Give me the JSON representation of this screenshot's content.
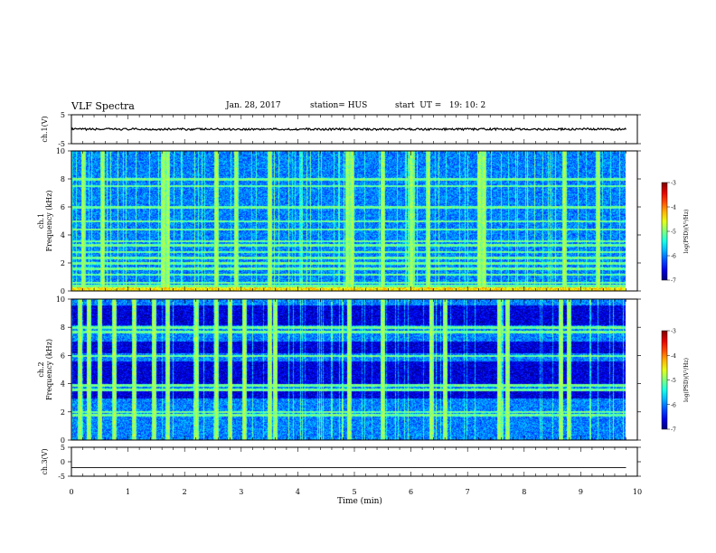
{
  "header": {
    "title": "VLF Spectra",
    "date": "Jan. 28, 2017",
    "station": "station= HUS",
    "start_ut": "start  UT =   19: 10: 2"
  },
  "chart_data": [
    {
      "type": "line",
      "panel": "ch1-waveform",
      "ylabel": "ch.1(V)",
      "ylim": [
        -5,
        5
      ],
      "yticks": [
        5,
        -5
      ],
      "xlim": [
        0,
        10
      ],
      "series": [
        {
          "level": 0,
          "noise_amplitude": 0.35
        }
      ]
    },
    {
      "type": "heatmap",
      "panel": "ch1-spectrogram",
      "ylabel": "ch.1\nFrequency (kHz)",
      "ylim": [
        0,
        10
      ],
      "yticks": [
        0,
        2,
        4,
        6,
        8,
        10
      ],
      "xlim": [
        0,
        10
      ],
      "time_end_min": 9.8,
      "colorbar": {
        "label": "log(PSD)(V²/Hz)",
        "range": [
          -7,
          -3
        ],
        "ticks": [
          -3,
          -4,
          -5,
          -6,
          -7
        ]
      },
      "horizontal_lines_khz": [
        0.4,
        0.6,
        1.2,
        1.6,
        2.0,
        2.4,
        2.8,
        3.3,
        3.6,
        4.4,
        5.0,
        6.0,
        7.5,
        8.0
      ],
      "vertical_bursts_min": [
        0.2,
        0.55,
        1.62,
        1.7,
        2.55,
        2.9,
        3.5,
        4.87,
        4.95,
        5.5,
        6.0,
        6.3,
        7.2,
        7.28,
        8.7,
        9.3
      ]
    },
    {
      "type": "heatmap",
      "panel": "ch2-spectrogram",
      "ylabel": "ch.2\nFrequency (kHz)",
      "ylim": [
        0,
        10
      ],
      "yticks": [
        0,
        2,
        4,
        6,
        8,
        10
      ],
      "xlim": [
        0,
        10
      ],
      "time_end_min": 9.8,
      "colorbar": {
        "label": "log(PSD)(V²/Hz)",
        "range": [
          -7,
          -3
        ],
        "ticks": [
          -3,
          -4,
          -5,
          -6,
          -7
        ]
      },
      "horizontal_lines_khz": [
        1.8,
        2.0,
        3.6,
        3.9,
        6.0,
        7.7,
        8.0
      ],
      "vertical_bursts_min": [
        0.15,
        0.3,
        0.5,
        0.75,
        1.1,
        1.45,
        1.7,
        2.2,
        2.55,
        2.8,
        3.05,
        3.5,
        3.6,
        4.9,
        5.5,
        6.35,
        6.6,
        7.55,
        7.7,
        8.65,
        8.78
      ]
    },
    {
      "type": "line",
      "panel": "ch3-waveform",
      "ylabel": "ch.3(V)",
      "ylim": [
        -5,
        5
      ],
      "yticks": [
        5,
        0,
        -5
      ],
      "xlim": [
        0,
        10
      ],
      "xlabel": "Time (min)",
      "xticks": [
        0,
        1,
        2,
        3,
        4,
        5,
        6,
        7,
        8,
        9,
        10
      ],
      "series": [
        {
          "level": -2,
          "noise_amplitude": 0
        }
      ]
    }
  ]
}
